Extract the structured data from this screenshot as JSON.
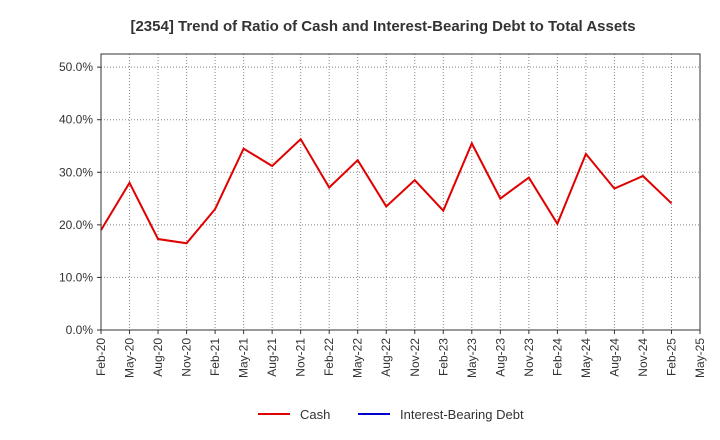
{
  "chart_data": {
    "type": "line",
    "title": "[2354]  Trend of Ratio of Cash and Interest-Bearing Debt to Total Assets",
    "xlabel": "",
    "ylabel": "",
    "ylim": [
      0,
      52.5
    ],
    "y_ticks": [
      0,
      10,
      20,
      30,
      40,
      50
    ],
    "y_tick_labels": [
      "0.0%",
      "10.0%",
      "20.0%",
      "30.0%",
      "40.0%",
      "50.0%"
    ],
    "x_tick_labels": [
      "Feb-20",
      "May-20",
      "Aug-20",
      "Nov-20",
      "Feb-21",
      "May-21",
      "Aug-21",
      "Nov-21",
      "Feb-22",
      "May-22",
      "Aug-22",
      "Nov-22",
      "Feb-23",
      "May-23",
      "Aug-23",
      "Nov-23",
      "Feb-24",
      "May-24",
      "Aug-24",
      "Nov-24",
      "Feb-25",
      "May-25"
    ],
    "grid": true,
    "legend_position": "bottom",
    "series": [
      {
        "name": "Cash",
        "color": "#e00000",
        "values": [
          19.0,
          28.0,
          17.3,
          16.5,
          23.0,
          34.5,
          31.2,
          36.3,
          27.1,
          32.3,
          23.5,
          28.5,
          22.7,
          35.5,
          25.0,
          29.0,
          20.2,
          33.5,
          26.9,
          29.3,
          24.1,
          null
        ]
      },
      {
        "name": "Interest-Bearing Debt",
        "color": "#0000cc",
        "values": [
          null,
          null,
          null,
          null,
          null,
          null,
          null,
          null,
          null,
          null,
          null,
          null,
          null,
          null,
          null,
          null,
          null,
          null,
          null,
          null,
          null,
          null
        ]
      }
    ]
  }
}
